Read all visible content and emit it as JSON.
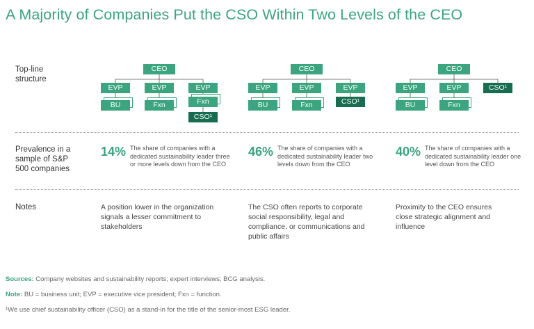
{
  "title": "A Majority of Companies Put the CSO Within Two Levels of the CEO",
  "row_labels": {
    "structure": [
      "Top-line",
      "structure"
    ],
    "prevalence": [
      "Prevalence in a",
      "sample of S&P",
      "500 companies"
    ],
    "notes": "Notes"
  },
  "columns": [
    {
      "org": {
        "ceo": "CEO",
        "evp": [
          "EVP",
          "EVP",
          "EVP"
        ],
        "sub": [
          "BU",
          "Fxn",
          "Fxn"
        ],
        "cso": "CSO¹"
      },
      "percent": "14%",
      "description": "The share of companies with a dedicated sustainability leader three or more levels down from the CEO",
      "note": "A position lower in the organization signals a lesser commitment to stakeholders"
    },
    {
      "org": {
        "ceo": "CEO",
        "evp": [
          "EVP",
          "EVP",
          "EVP"
        ],
        "sub": [
          "BU",
          "Fxn"
        ],
        "cso": "CSO¹"
      },
      "percent": "46%",
      "description": "The share of companies with a dedicated sustainability leader two levels down from the CEO",
      "note": "The CSO often reports to corporate social responsibility, legal and compliance, or communications and public affairs"
    },
    {
      "org": {
        "ceo": "CEO",
        "evp": [
          "EVP",
          "EVP"
        ],
        "sub": [
          "BU",
          "Fxn"
        ],
        "cso": "CSO¹"
      },
      "percent": "40%",
      "description": "The share of companies with a dedicated sustainability leader one level down from the CEO",
      "note": "Proximity to the CEO ensures close strategic alignment and influence"
    }
  ],
  "footnotes": {
    "sources_label": "Sources:",
    "sources_text": " Company websites and sustainability reports; expert interviews; BCG analysis.",
    "note_label": "Note:",
    "note_text": " BU = business unit; EVP = executive vice president; Fxn = function.",
    "footnote": "¹We use chief sustainability officer (CSO) as a stand-in for the title of the senior-most ESG leader."
  },
  "colors": {
    "accent": "#3aa57f",
    "dark_accent": "#176d4f"
  }
}
